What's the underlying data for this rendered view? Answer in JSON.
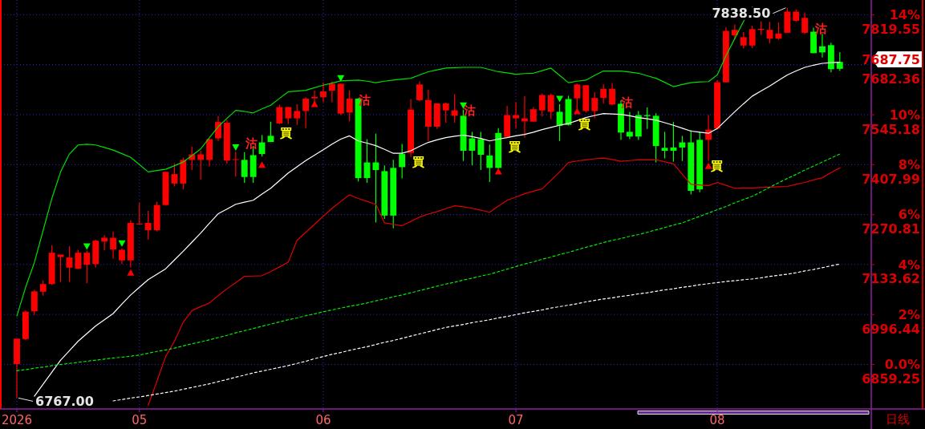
{
  "chart_data": {
    "type": "candlestick",
    "categories": [
      "2026",
      null,
      null,
      null,
      null,
      null,
      null,
      null,
      null,
      null,
      null,
      null,
      null,
      null,
      "05",
      null,
      null,
      null,
      null,
      null,
      null,
      null,
      null,
      null,
      null,
      null,
      null,
      null,
      null,
      null,
      null,
      null,
      null,
      null,
      null,
      "06",
      null,
      null,
      null,
      null,
      null,
      null,
      null,
      null,
      null,
      null,
      null,
      null,
      null,
      null,
      null,
      null,
      null,
      null,
      null,
      null,
      null,
      "07",
      null,
      null,
      null,
      null,
      null,
      null,
      null,
      null,
      null,
      null,
      null,
      null,
      null,
      null,
      null,
      null,
      null,
      null,
      null,
      null,
      null,
      null,
      "08",
      null,
      null,
      null,
      null,
      null,
      null,
      null,
      null,
      null,
      null,
      null,
      null,
      null,
      null
    ],
    "ohlc": [
      [
        6860,
        6930,
        6767,
        6930
      ],
      [
        6929,
        7008,
        6925,
        7004
      ],
      [
        7005,
        7064,
        6995,
        7060
      ],
      [
        7059,
        7090,
        7048,
        7080
      ],
      [
        7080,
        7187,
        7078,
        7166
      ],
      [
        7154,
        7161,
        7086,
        7161
      ],
      [
        7125,
        7184,
        7086,
        7153
      ],
      [
        7122,
        7174,
        7122,
        7166
      ],
      [
        7133,
        7172,
        7082,
        7166
      ],
      [
        7135,
        7202,
        7125,
        7199
      ],
      [
        7197,
        7214,
        7173,
        7207
      ],
      [
        7175,
        7224,
        7150,
        7207
      ],
      [
        7145,
        7178,
        7135,
        7174
      ],
      [
        7145,
        7255,
        7125,
        7248
      ],
      [
        7244,
        7303,
        7244,
        7246
      ],
      [
        7228,
        7281,
        7202,
        7248
      ],
      [
        7228,
        7306,
        7224,
        7297
      ],
      [
        7297,
        7388,
        7295,
        7388
      ],
      [
        7356,
        7412,
        7348,
        7382
      ],
      [
        7356,
        7427,
        7340,
        7421
      ],
      [
        7421,
        7457,
        7393,
        7436
      ],
      [
        7421,
        7446,
        7366,
        7436
      ],
      [
        7421,
        7478,
        7403,
        7478
      ],
      [
        7480,
        7541,
        7473,
        7525
      ],
      [
        7419,
        7531,
        7410,
        7523
      ],
      [
        7421,
        7444,
        7375,
        7423
      ],
      [
        7421,
        7442,
        7358,
        7374
      ],
      [
        7434,
        7459,
        7358,
        7374
      ],
      [
        7469,
        7489,
        7430,
        7437
      ],
      [
        7487,
        7526,
        7470,
        7470
      ],
      [
        7521,
        7572,
        7519,
        7566
      ],
      [
        7535,
        7566,
        7519,
        7566
      ],
      [
        7535,
        7574,
        7517,
        7555
      ],
      [
        7555,
        7593,
        7508,
        7589
      ],
      [
        7590,
        7612,
        7580,
        7594
      ],
      [
        7593,
        7634,
        7579,
        7609
      ],
      [
        7611,
        7637,
        7579,
        7630
      ],
      [
        7548,
        7630,
        7544,
        7630
      ],
      [
        7551,
        7612,
        7527,
        7589
      ],
      [
        7589,
        7591,
        7362,
        7371
      ],
      [
        7414,
        7478,
        7358,
        7371
      ],
      [
        7414,
        7493,
        7249,
        7393
      ],
      [
        7390,
        7406,
        7259,
        7268
      ],
      [
        7399,
        7421,
        7233,
        7268
      ],
      [
        7437,
        7465,
        7370,
        7401
      ],
      [
        7440,
        7588,
        7429,
        7559
      ],
      [
        7585,
        7637,
        7582,
        7628
      ],
      [
        7512,
        7614,
        7473,
        7585
      ],
      [
        7512,
        7576,
        7506,
        7576
      ],
      [
        7557,
        7578,
        7523,
        7576
      ],
      [
        7542,
        7601,
        7523,
        7557
      ],
      [
        7542,
        7559,
        7418,
        7446
      ],
      [
        7480,
        7498,
        7406,
        7446
      ],
      [
        7478,
        7498,
        7393,
        7435
      ],
      [
        7433,
        7463,
        7360,
        7399
      ],
      [
        7495,
        7508,
        7397,
        7399
      ],
      [
        7484,
        7569,
        7482,
        7544
      ],
      [
        7535,
        7580,
        7508,
        7544
      ],
      [
        7527,
        7596,
        7482,
        7535
      ],
      [
        7526,
        7566,
        7526,
        7560
      ],
      [
        7557,
        7603,
        7540,
        7599
      ],
      [
        7553,
        7603,
        7533,
        7599
      ],
      [
        7553,
        7574,
        7473,
        7515
      ],
      [
        7588,
        7597,
        7515,
        7517
      ],
      [
        7590,
        7630,
        7562,
        7628
      ],
      [
        7555,
        7626,
        7551,
        7626
      ],
      [
        7555,
        7607,
        7535,
        7591
      ],
      [
        7591,
        7628,
        7576,
        7616
      ],
      [
        7573,
        7632,
        7571,
        7616
      ],
      [
        7575,
        7584,
        7476,
        7496
      ],
      [
        7498,
        7553,
        7478,
        7485
      ],
      [
        7544,
        7555,
        7476,
        7485
      ],
      [
        7544,
        7565,
        7506,
        7541
      ],
      [
        7542,
        7549,
        7414,
        7459
      ],
      [
        7454,
        7498,
        7425,
        7446
      ],
      [
        7455,
        7525,
        7416,
        7446
      ],
      [
        7469,
        7487,
        7418,
        7455
      ],
      [
        7469,
        7503,
        7326,
        7336
      ],
      [
        7476,
        7498,
        7332,
        7340
      ],
      [
        7476,
        7544,
        7418,
        7504
      ],
      [
        7507,
        7640,
        7504,
        7634
      ],
      [
        7634,
        7785,
        7633,
        7775
      ],
      [
        7763,
        7793,
        7751,
        7778
      ],
      [
        7735,
        7772,
        7727,
        7758
      ],
      [
        7735,
        7789,
        7728,
        7780
      ],
      [
        7778,
        7801,
        7764,
        7781
      ],
      [
        7754,
        7800,
        7741,
        7778
      ],
      [
        7754,
        7798,
        7751,
        7768
      ],
      [
        7770,
        7838.5,
        7770,
        7828
      ],
      [
        7803,
        7834,
        7800,
        7828
      ],
      [
        7770,
        7826,
        7767,
        7811
      ],
      [
        7773,
        7784,
        7714,
        7714
      ],
      [
        7733,
        7767,
        7702,
        7716
      ],
      [
        7736,
        7743,
        7661,
        7670
      ],
      [
        7690,
        7717,
        7665,
        7671
      ]
    ],
    "colors": [
      "#ff0000",
      "#ff0000",
      "#ff0000",
      "#ff0000",
      "#ff0000",
      "#ff0000",
      "#ff0000",
      "#ff0000",
      "#ff0000",
      "#ff0000",
      "#ff0000",
      "#ff0000",
      "#ff0000",
      "#ff0000",
      "#ff0000",
      "#ff0000",
      "#ff0000",
      "#ff0000",
      "#ff0000",
      "#ff0000",
      "#ff0000",
      "#ff0000",
      "#ff0000",
      "#ff0000",
      "#ff0000",
      "#ff0000",
      "#00ff00",
      "#00ff00",
      "#00ff00",
      "#00ff00",
      "#ff0000",
      "#ff0000",
      "#ff0000",
      "#ff0000",
      "#ff0000",
      "#ff0000",
      "#ff0000",
      "#ff0000",
      "#ff0000",
      "#00ff00",
      "#00ff00",
      "#00ff00",
      "#00ff00",
      "#00ff00",
      "#00ff00",
      "#ff0000",
      "#ff0000",
      "#ff0000",
      "#ff0000",
      "#ff0000",
      "#ff0000",
      "#00ff00",
      "#00ff00",
      "#00ff00",
      "#00ff00",
      "#00ff00",
      "#ff0000",
      "#ff0000",
      "#ff0000",
      "#ff0000",
      "#ff0000",
      "#ff0000",
      "#00ff00",
      "#00ff00",
      "#ff0000",
      "#ff0000",
      "#ff0000",
      "#ff0000",
      "#ff0000",
      "#00ff00",
      "#00ff00",
      "#00ff00",
      "#00ff00",
      "#00ff00",
      "#00ff00",
      "#00ff00",
      "#00ff00",
      "#00ff00",
      "#00ff00",
      "#ff0000",
      "#ff0000",
      "#ff0000",
      "#ff0000",
      "#ff0000",
      "#ff0000",
      "#ff0000",
      "#ff0000",
      "#ff0000",
      "#ff0000",
      "#ff0000",
      "#ff0000",
      "#00ff00",
      "#00ff00",
      "#00ff00",
      "#00ff00"
    ],
    "series": [
      {
        "type": "line",
        "color": "#ffffff",
        "values": [
          null,
          null,
          6772,
          6805,
          6838,
          6871,
          6897,
          6923,
          6944,
          6965,
          6982,
          6999,
          7025,
          7050,
          7071,
          7092,
          7107,
          7122,
          7146,
          7170,
          7195,
          7220,
          7247,
          7273,
          7286,
          7299,
          7305,
          7310,
          7327,
          7343,
          7364,
          7385,
          7402,
          7419,
          7434,
          7449,
          7464,
          7478,
          7487,
          7473,
          7467,
          7460,
          7450,
          7439,
          7439,
          7446,
          7458,
          7469,
          7476,
          7482,
          7486,
          7489,
          7485,
          7480,
          7473,
          7478,
          7482,
          7487,
          7491,
          7497,
          7504,
          7510,
          7516,
          7521,
          7529,
          7537,
          7543,
          7548,
          7547,
          7546,
          7542,
          7537,
          7534,
          7530,
          7523,
          7516,
          7508,
          7500,
          7497,
          7494,
          7507,
          7530,
          7553,
          7575,
          7596,
          7610,
          7624,
          7639,
          7654,
          7665,
          7675,
          7681,
          7686,
          7688,
          7689
        ]
      },
      {
        "type": "line",
        "color": "#00dd00",
        "values": [
          6992,
          7071,
          7139,
          7227,
          7315,
          7388,
          7437,
          7462,
          7464,
          7462,
          7455,
          7448,
          7438,
          7428,
          7408,
          7388,
          7392,
          7395,
          7405,
          7415,
          7433,
          7451,
          7482,
          7512,
          7535,
          7557,
          7554,
          7550,
          7561,
          7571,
          7590,
          7608,
          7610,
          7612,
          7619,
          7626,
          7632,
          7638,
          7639,
          7640,
          7637,
          7633,
          7637,
          7640,
          7643,
          7645,
          7654,
          7663,
          7668,
          7673,
          7674,
          7675,
          7675,
          7675,
          7669,
          7663,
          7660,
          7656,
          7658,
          7659,
          7666,
          7673,
          7653,
          7633,
          7637,
          7640,
          7653,
          7665,
          7665,
          7665,
          7662,
          7659,
          7652,
          7645,
          7634,
          7622,
          7628,
          7633,
          7635,
          7636,
          7654,
          7707,
          7754,
          7801,
          7841,
          null,
          null,
          null,
          null,
          null,
          null,
          null,
          null,
          null,
          null
        ]
      },
      {
        "type": "line",
        "color": "#e00000",
        "values": [
          null,
          null,
          null,
          null,
          null,
          null,
          null,
          null,
          null,
          null,
          null,
          null,
          null,
          null,
          null,
          6747,
          6813,
          6881,
          6923,
          6975,
          7007,
          7018,
          7028,
          7048,
          7067,
          7084,
          7101,
          7102,
          7103,
          7114,
          7127,
          7140,
          7200,
          7222,
          7244,
          7266,
          7288,
          7307,
          7325,
          7315,
          7307,
          7299,
          7248,
          7244,
          7240,
          7252,
          7264,
          7272,
          7279,
          7287,
          7295,
          7292,
          7288,
          7283,
          7277,
          7294,
          7310,
          7319,
          7328,
          7335,
          7341,
          7365,
          7388,
          7414,
          7418,
          7421,
          7424,
          7426,
          7422,
          7417,
          7419,
          7421,
          7421,
          7421,
          7416,
          7410,
          7382,
          7354,
          7352,
          7350,
          7359,
          7351,
          7343,
          7344,
          7344,
          7345,
          7346,
          7347,
          7348,
          7354,
          7359,
          7366,
          7372,
          7386,
          7399
        ]
      },
      {
        "type": "line",
        "color": "#00ee00",
        "line_style": "dashed",
        "values": [
          6842,
          6845,
          6849,
          6852,
          6856,
          6859,
          6862,
          6865,
          6868,
          6871,
          6874,
          6877,
          6879,
          6882,
          6885,
          6890,
          6895,
          6899,
          6904,
          6910,
          6916,
          6921,
          6927,
          6933,
          6939,
          6946,
          6952,
          6958,
          6964,
          6970,
          6976,
          6982,
          6987,
          6993,
          6998,
          7004,
          7009,
          7014,
          7019,
          7023,
          7028,
          7034,
          7039,
          7045,
          7050,
          7056,
          7062,
          7068,
          7074,
          7080,
          7085,
          7091,
          7096,
          7102,
          7107,
          7114,
          7121,
          7128,
          7135,
          7141,
          7148,
          7154,
          7161,
          7167,
          7174,
          7181,
          7187,
          7194,
          7200,
          7205,
          7211,
          7216,
          7222,
          7229,
          7235,
          7242,
          7248,
          7257,
          7266,
          7275,
          7284,
          7293,
          7303,
          7312,
          7321,
          7333,
          7346,
          7358,
          7370,
          7381,
          7393,
          7404,
          7415,
          7426,
          7437
        ]
      },
      {
        "type": "line",
        "color": "#ffffff",
        "line_style": "dashed",
        "values": [
          null,
          null,
          null,
          null,
          null,
          null,
          null,
          null,
          null,
          null,
          null,
          6759,
          6763,
          6767,
          6770,
          6774,
          6778,
          6782,
          6786,
          6791,
          6796,
          6801,
          6806,
          6812,
          6818,
          6824,
          6830,
          6836,
          6841,
          6846,
          6851,
          6856,
          6862,
          6868,
          6875,
          6881,
          6887,
          6892,
          6898,
          6903,
          6908,
          6914,
          6920,
          6925,
          6931,
          6937,
          6943,
          6949,
          6955,
          6961,
          6965,
          6969,
          6974,
          6978,
          6982,
          6987,
          6991,
          6996,
          7001,
          7005,
          7009,
          7014,
          7018,
          7022,
          7026,
          7031,
          7035,
          7039,
          7042,
          7046,
          7049,
          7053,
          7056,
          7060,
          7064,
          7067,
          7071,
          7074,
          7078,
          7081,
          7084,
          7087,
          7089,
          7092,
          7094,
          7097,
          7101,
          7104,
          7107,
          7111,
          7116,
          7120,
          7125,
          7130,
          7135
        ]
      },
      {
        "type": "scatter",
        "color": "#00ff00",
        "marker": "triangle",
        "values": [
          null,
          null,
          null,
          null,
          null,
          null,
          null,
          null,
          7183,
          null,
          null,
          null,
          7191,
          null,
          null,
          null,
          null,
          null,
          null,
          null,
          null,
          null,
          null,
          null,
          null,
          7455,
          null,
          null,
          null,
          null,
          null,
          null,
          null,
          null,
          null,
          null,
          null,
          7645,
          null,
          null,
          null,
          null,
          null,
          null,
          null,
          null,
          null,
          null,
          null,
          null,
          null,
          7570,
          null,
          null,
          null,
          null,
          null,
          null,
          null,
          null,
          null,
          null,
          7588,
          null,
          null,
          null,
          null,
          null,
          null,
          null,
          null,
          null,
          null,
          null,
          null,
          null,
          null,
          null,
          null,
          null,
          null,
          null,
          null,
          null,
          null,
          null,
          null,
          null,
          null,
          null,
          null,
          null,
          null,
          null,
          null
        ]
      },
      {
        "type": "scatter",
        "color": "#ff0000",
        "marker": "triangle",
        "values": [
          null,
          null,
          null,
          null,
          null,
          null,
          null,
          null,
          null,
          null,
          null,
          null,
          null,
          7112,
          null,
          null,
          null,
          null,
          null,
          null,
          null,
          null,
          null,
          null,
          null,
          null,
          null,
          null,
          7408,
          null,
          null,
          null,
          null,
          null,
          7575,
          null,
          null,
          null,
          null,
          null,
          null,
          null,
          null,
          null,
          null,
          null,
          null,
          null,
          null,
          null,
          null,
          null,
          null,
          null,
          null,
          7390,
          null,
          null,
          null,
          null,
          null,
          null,
          null,
          null,
          7555,
          null,
          null,
          null,
          null,
          null,
          null,
          null,
          null,
          null,
          null,
          null,
          null,
          null,
          null,
          7405,
          null,
          null,
          null,
          null,
          null,
          null,
          null,
          null,
          null,
          null,
          null,
          null,
          null,
          null,
          null
        ]
      }
    ],
    "ylim": [
      6737,
      7860
    ],
    "yticks": [
      6859.25,
      6996.44,
      7133.62,
      7270.81,
      7407.99,
      7545.18,
      7682.36,
      7819.55
    ],
    "y2lim": [
      -1.78,
      14.59
    ],
    "y2ticks": [
      {
        "value": 0,
        "label": "0.0%"
      },
      {
        "value": 2,
        "label": "2%"
      },
      {
        "value": 4,
        "label": "4%"
      },
      {
        "value": 6,
        "label": "6%"
      },
      {
        "value": 8,
        "label": "8%"
      },
      {
        "value": 10,
        "label": "10%"
      },
      {
        "value": 14,
        "label": "14%"
      }
    ],
    "grid": true,
    "annotations": [
      "7838.50",
      "6767.00",
      "沽",
      "沽",
      "沽",
      "沽",
      "沽",
      "買",
      "買",
      "買",
      "買",
      "買",
      "日线",
      "7687.75"
    ]
  }
}
